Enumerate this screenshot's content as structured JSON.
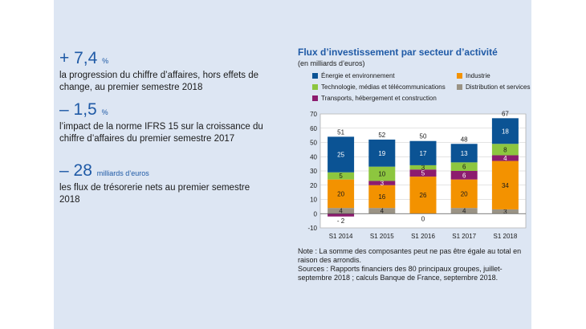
{
  "kpis": [
    {
      "value": "+ 7,4",
      "unit": "%",
      "desc": "la progression du chiffre d’affaires, hors effets de change, au premier semestre 2018"
    },
    {
      "value": "– 1,5",
      "unit": "%",
      "desc": "l’impact de la norme IFRS 15 sur la croissance du chiffre d’affaires du premier semestre 2017"
    },
    {
      "value": "– 28",
      "unit": "milliards d’euros",
      "desc": "les flux de trésorerie nets au premier semestre 2018"
    }
  ],
  "chart_data": {
    "type": "bar",
    "stacked": true,
    "title": "Flux d’investissement par secteur d’activité",
    "subtitle": "(en milliards d’euros)",
    "categories": [
      "S1 2014",
      "S1 2015",
      "S1 2016",
      "S1 2017",
      "S1 2018"
    ],
    "ylim": [
      -10,
      70
    ],
    "yticks": [
      -10,
      0,
      10,
      20,
      30,
      40,
      50,
      60,
      70
    ],
    "grid": true,
    "legend_position": "top",
    "series": [
      {
        "name": "Distribution et services",
        "color": "#9a9385",
        "values": [
          4,
          4,
          0,
          4,
          3
        ],
        "labels": [
          "4",
          "4",
          "0",
          "4",
          "3"
        ]
      },
      {
        "name": "Industrie",
        "color": "#f39200",
        "values": [
          20,
          16,
          26,
          20,
          34
        ],
        "labels": [
          "20",
          "16",
          "26",
          "20",
          "34"
        ]
      },
      {
        "name": "Transports, hébergement et construction",
        "color": "#8c1c6e",
        "values": [
          -2,
          3,
          5,
          6,
          4
        ],
        "labels": [
          "- 2",
          "3",
          "5",
          "6",
          "4"
        ]
      },
      {
        "name": "Technologie, médias et télécommunications",
        "color": "#8dc63f",
        "values": [
          5,
          10,
          3,
          6,
          8
        ],
        "labels": [
          "5",
          "10",
          "3",
          "6",
          "8"
        ]
      },
      {
        "name": "Énergie et environnement",
        "color": "#0b5394",
        "values": [
          25,
          19,
          17,
          13,
          18
        ],
        "labels": [
          "25",
          "19",
          "17",
          "13",
          "18"
        ]
      }
    ],
    "totals": [
      51,
      52,
      50,
      48,
      67
    ],
    "legend_order": [
      "Énergie et environnement",
      "Industrie",
      "Technologie, médias et télécommunications",
      "Distribution et services",
      "Transports, hébergement et construction"
    ]
  },
  "notes": [
    "Note : La somme des composantes peut ne pas être égale au total en raison des arrondis.",
    "Sources : Rapports financiers des 80 principaux groupes, juillet-septembre 2018 ; calculs Banque de France, septembre 2018."
  ]
}
